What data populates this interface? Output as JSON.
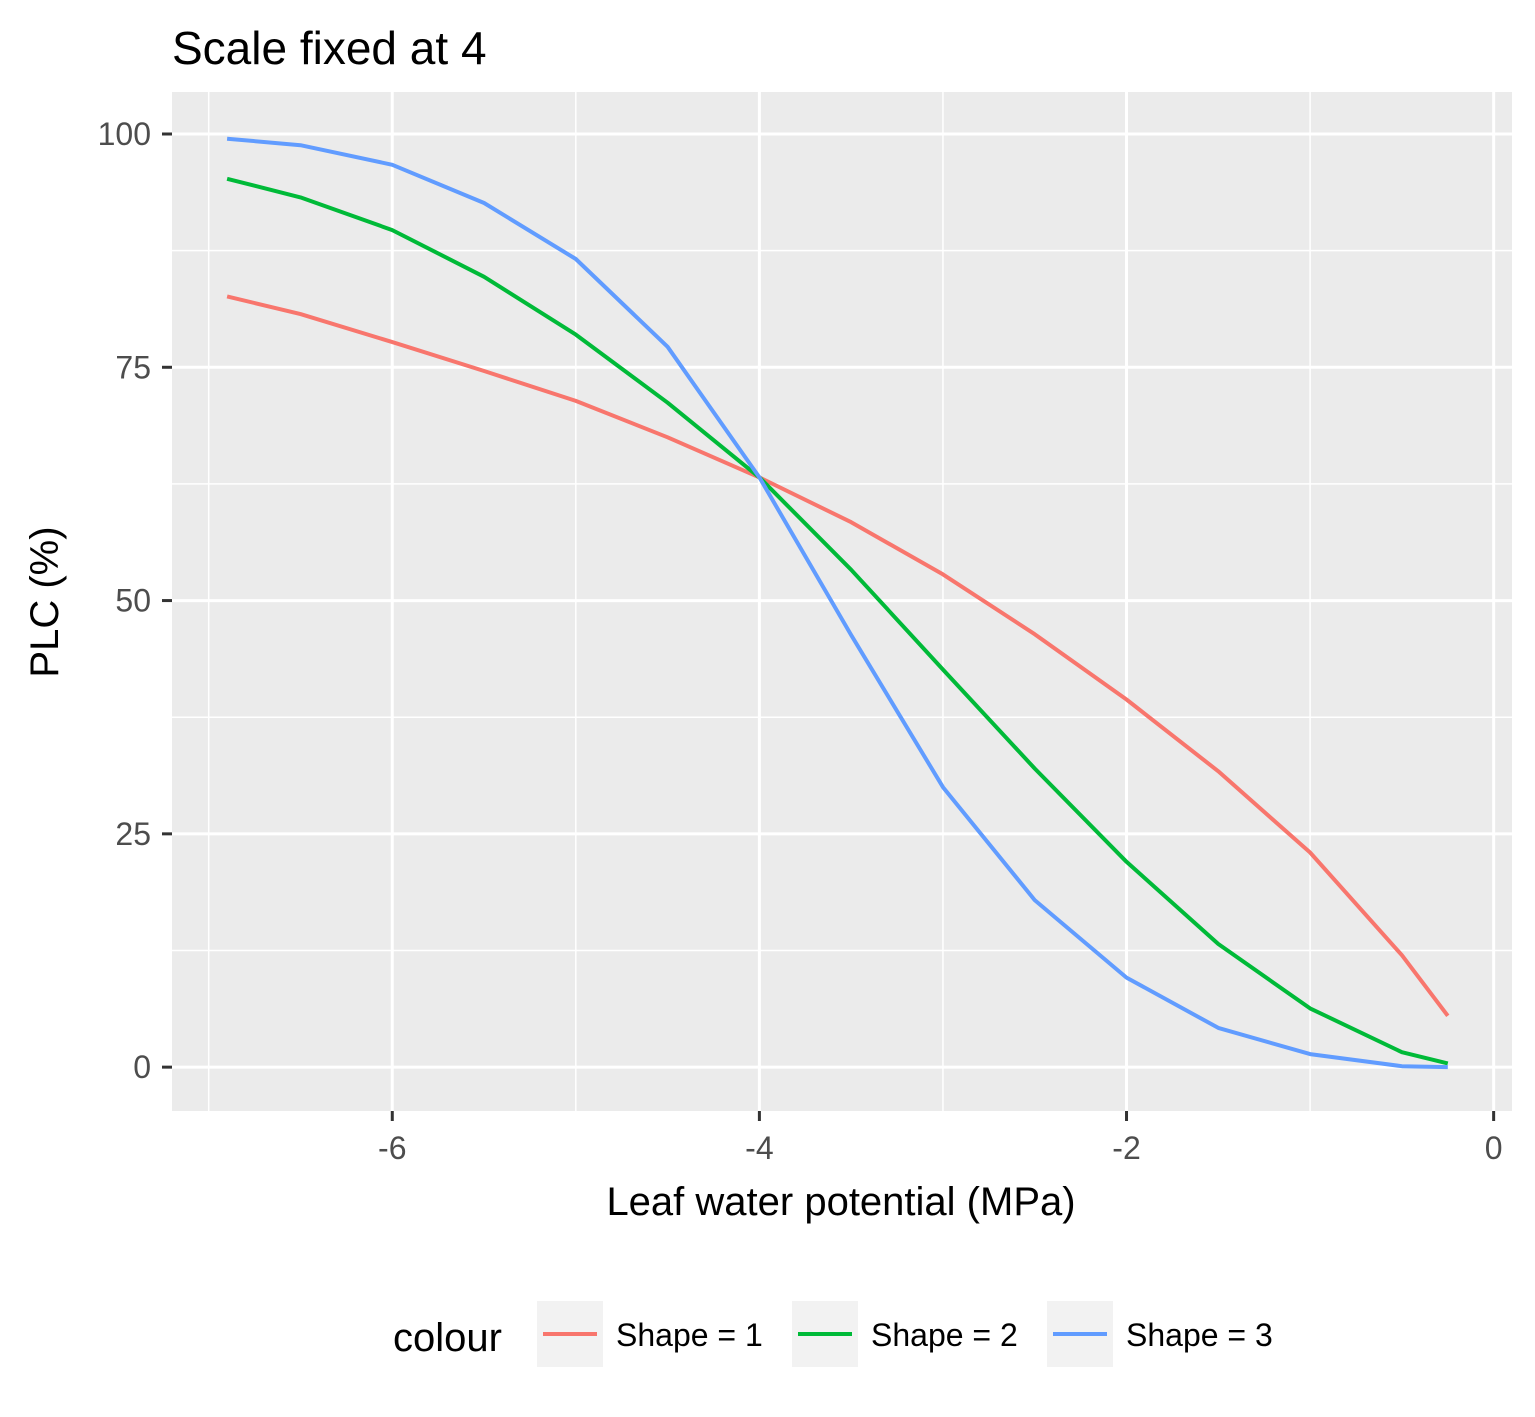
{
  "chart_data": {
    "type": "line",
    "title": "Scale fixed at 4",
    "xlabel": "Leaf water potential (MPa)",
    "ylabel": "PLC (%)",
    "xlim": [
      -7.2,
      0.1
    ],
    "ylim": [
      -4.7,
      104.5
    ],
    "x_ticks": [
      -6,
      -4,
      -2,
      0
    ],
    "x_tick_labels": [
      "-6",
      "-4",
      "-2",
      "0"
    ],
    "y_ticks": [
      0,
      25,
      50,
      75,
      100
    ],
    "y_tick_labels": [
      "0",
      "25",
      "50",
      "75",
      "100"
    ],
    "x_minor": [
      -7,
      -5,
      -3,
      -1
    ],
    "y_minor": [
      12.5,
      37.5,
      62.5,
      87.5
    ],
    "grid": true,
    "legend": {
      "title": "colour",
      "position": "bottom"
    },
    "panel_color": "#ebebeb",
    "x": [
      -6.9,
      -6.5,
      -6.0,
      -5.5,
      -5.0,
      -4.5,
      -4.0,
      -3.5,
      -3.0,
      -2.5,
      -2.0,
      -1.5,
      -1.0,
      -0.5,
      -0.25
    ],
    "series": [
      {
        "name": "Shape = 1",
        "color": "#f8766d",
        "values": [
          82.6,
          80.7,
          77.7,
          74.6,
          71.4,
          67.5,
          63.2,
          58.4,
          52.8,
          46.4,
          39.4,
          31.7,
          23.0,
          12.0,
          5.5
        ]
      },
      {
        "name": "Shape = 2",
        "color": "#00ba38",
        "values": [
          95.2,
          93.2,
          89.7,
          84.7,
          78.5,
          71.2,
          63.2,
          53.3,
          42.6,
          32.0,
          22.0,
          13.2,
          6.3,
          1.6,
          0.4
        ]
      },
      {
        "name": "Shape = 3",
        "color": "#619cff",
        "values": [
          99.5,
          98.8,
          96.7,
          92.6,
          86.6,
          77.2,
          63.2,
          46.3,
          30.0,
          17.9,
          9.6,
          4.2,
          1.4,
          0.1,
          0.0
        ]
      }
    ]
  }
}
